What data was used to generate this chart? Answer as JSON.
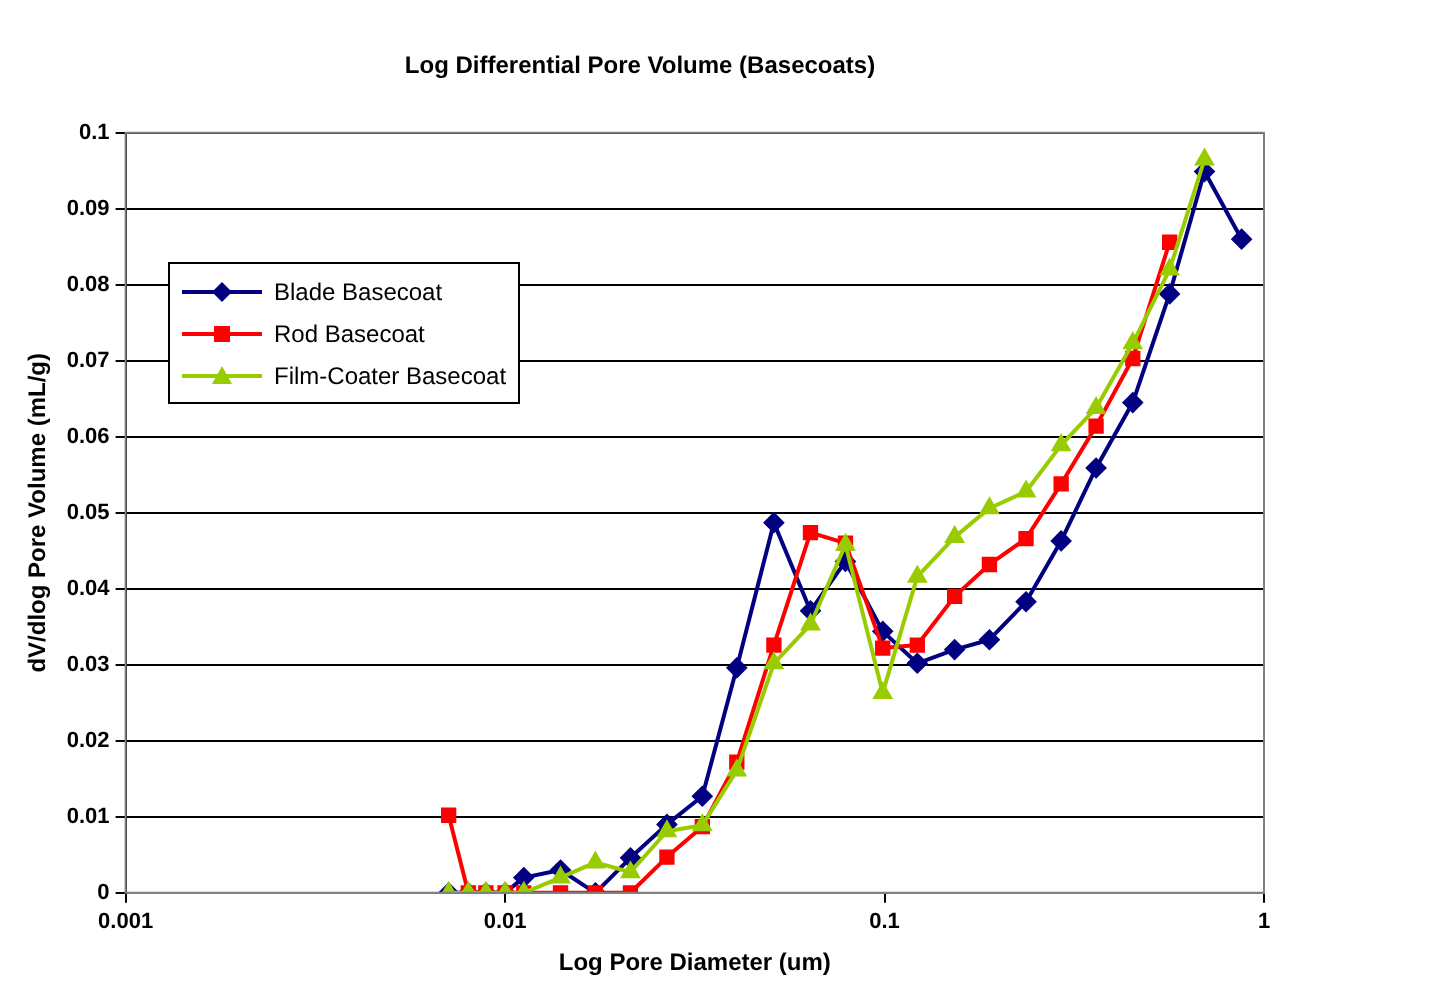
{
  "chart_data": {
    "type": "line",
    "title": "Log Differential Pore Volume (Basecoats)",
    "xlabel": "Log Pore Diameter (um)",
    "ylabel": "dV/dlog Pore Volume (mL/g)",
    "x": [
      0.0071,
      0.008,
      0.0089,
      0.01,
      0.0112,
      0.014,
      0.0173,
      0.0214,
      0.0267,
      0.0331,
      0.0408,
      0.0511,
      0.0638,
      0.0789,
      0.0989,
      0.122,
      0.153,
      0.189,
      0.236,
      0.292,
      0.361,
      0.451,
      0.564,
      0.697,
      0.873
    ],
    "log": "x",
    "xlim": [
      0.001,
      1
    ],
    "xticks": [
      0.001,
      0.01,
      0.1,
      1
    ],
    "ylim": [
      0,
      0.1
    ],
    "yticks": [
      0,
      0.01,
      0.02,
      0.03,
      0.04,
      0.05,
      0.06,
      0.07,
      0.08,
      0.09,
      0.1
    ],
    "grid": "y",
    "legend": "top left",
    "series": [
      {
        "name": "Blade Basecoat",
        "color": "#000080",
        "marker": "diamond",
        "values": [
          0,
          0,
          0,
          0,
          0.002,
          0.003,
          0,
          0.0046,
          0.009,
          0.0127,
          0.0296,
          0.0487,
          0.0371,
          0.0436,
          0.0344,
          0.0302,
          0.032,
          0.0333,
          0.0383,
          0.0463,
          0.0559,
          0.0645,
          0.0788,
          0.0949,
          0.086
        ]
      },
      {
        "name": "Rod Basecoat",
        "color": "#ff0000",
        "marker": "square",
        "values": [
          0.0102,
          0,
          0,
          0,
          0,
          0,
          0,
          0,
          0.0047,
          0.0087,
          0.0172,
          0.0326,
          0.0474,
          0.046,
          0.0322,
          0.0326,
          0.039,
          0.0432,
          0.0466,
          0.0538,
          0.0614,
          0.0703,
          0.0856,
          null,
          null
        ]
      },
      {
        "name": "Film-Coater Basecoat",
        "color": "#99cc00",
        "marker": "triangle",
        "values": [
          0,
          0,
          0,
          0,
          0,
          0.002,
          0.004,
          0.0027,
          0.0081,
          0.0089,
          0.0161,
          0.0302,
          0.0353,
          0.0458,
          0.0263,
          0.0416,
          0.0468,
          0.0506,
          0.0528,
          0.0589,
          0.0638,
          0.0723,
          0.082,
          0.0965,
          null
        ]
      }
    ]
  }
}
